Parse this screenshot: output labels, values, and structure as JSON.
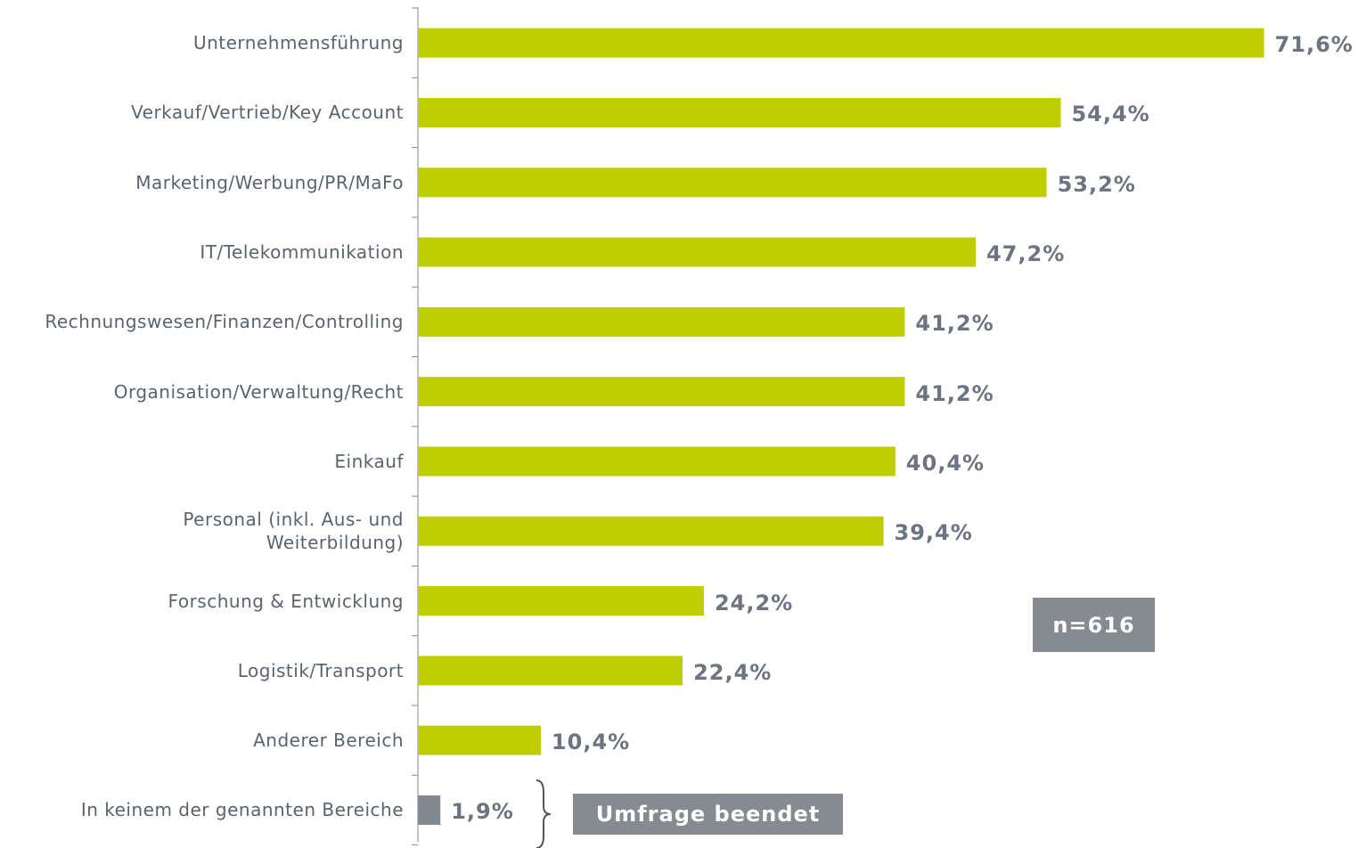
{
  "chart_data": {
    "type": "hbar",
    "categories": [
      "Unternehmensführung",
      "Verkauf/Vertrieb/Key Account",
      "Marketing/Werbung/PR/MaFo",
      "IT/Telekommunikation",
      "Rechnungswesen/Finanzen/Controlling",
      "Organisation/Verwaltung/Recht",
      "Einkauf",
      "Personal (inkl. Aus- und\nWeiterbildung)",
      "Forschung & Entwicklung",
      "Logistik/Transport",
      "Anderer Bereich",
      "In keinem der genannten Bereiche"
    ],
    "values": [
      71.6,
      54.4,
      53.2,
      47.2,
      41.2,
      41.2,
      40.4,
      39.4,
      24.2,
      22.4,
      10.4,
      1.9
    ],
    "value_labels": [
      "71,6%",
      "54,4%",
      "53,2%",
      "47,2%",
      "41,2%",
      "41,2%",
      "40,4%",
      "39,4%",
      "24,2%",
      "22,4%",
      "10,4%",
      "1,9%"
    ],
    "colors": [
      "#bfce00",
      "#bfce00",
      "#bfce00",
      "#bfce00",
      "#bfce00",
      "#bfce00",
      "#bfce00",
      "#bfce00",
      "#bfce00",
      "#bfce00",
      "#bfce00",
      "#808890"
    ],
    "xlim": [
      0,
      80
    ],
    "annotations": [
      "n=616",
      "Umfrage beendet"
    ]
  }
}
